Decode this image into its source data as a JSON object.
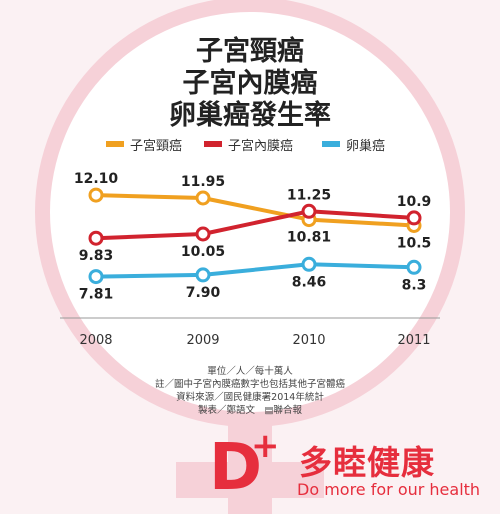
{
  "chart_data": {
    "type": "line",
    "title_lines": [
      "子宮頸癌",
      "子宮內膜癌",
      "卵巢癌發生率"
    ],
    "categories": [
      "2008",
      "2009",
      "2010",
      "2011"
    ],
    "ylim": [
      7,
      13
    ],
    "grid": false,
    "legend_position": "top",
    "series": [
      {
        "name": "子宮頸癌",
        "color": "#f0a020",
        "values": [
          12.1,
          11.95,
          10.81,
          10.5
        ],
        "labels": [
          "12.10",
          "11.95",
          "10.81",
          "10.5"
        ]
      },
      {
        "name": "子宮內膜癌",
        "color": "#d1232e",
        "values": [
          9.83,
          10.05,
          11.25,
          10.9
        ],
        "labels": [
          "9.83",
          "10.05",
          "11.25",
          "10.9"
        ]
      },
      {
        "name": "卵巢癌",
        "color": "#3aaedc",
        "values": [
          7.81,
          7.9,
          8.46,
          8.3
        ],
        "labels": [
          "7.81",
          "7.90",
          "8.46",
          "8.3"
        ]
      }
    ]
  },
  "notes": [
    "單位／人／每十萬人",
    "註／圖中子宮內膜癌數字也包括其他子宮體癌",
    "資料來源／國民健康署2014年統計",
    "製表／鄭語文　▤聯合報"
  ],
  "logo": {
    "letter": "D",
    "plus": "+",
    "name": "多睦健康",
    "slogan": "Do more for our health"
  },
  "colors": {
    "ring": "#f2bcc6",
    "axis": "#999999",
    "brand": "#e62e3d"
  }
}
